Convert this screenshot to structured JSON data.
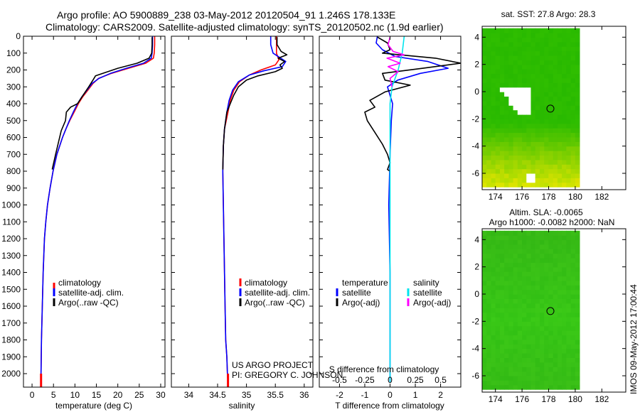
{
  "header": {
    "line1": "Argo profile: AO 5900889_238 03-May-2012 20120504_91 1.246S 178.133E",
    "line2": "Climatology: CARS2009. Satellite-adjusted climatology: synTS_20120502.nc (1.9d earlier)"
  },
  "colors": {
    "climatology": "#ff0000",
    "satellite": "#0000ff",
    "argo": "#000000",
    "salinity_satellite": "#00e5ee",
    "salinity_argo": "#ff00ff"
  },
  "credits": {
    "project": "US ARGO PROJECT",
    "pi": "PI: GREGORY C. JOHNSON",
    "stamp": "IMOS 09-May-2012 17:00:44"
  },
  "chart_data": [
    {
      "type": "line",
      "xlabel": "temperature (deg C)",
      "ylabel": "",
      "xlim": [
        -2,
        31
      ],
      "ylim": [
        2080,
        0
      ],
      "xticks": [
        "0",
        "5",
        "10",
        "15",
        "20",
        "25",
        "30"
      ],
      "xtick_values": [
        0,
        5,
        10,
        15,
        20,
        25,
        30
      ],
      "yticks": [
        "0",
        "100",
        "200",
        "300",
        "400",
        "500",
        "600",
        "700",
        "800",
        "900",
        "1000",
        "1100",
        "1200",
        "1300",
        "1400",
        "1500",
        "1600",
        "1700",
        "1800",
        "1900",
        "2000"
      ],
      "ytick_values": [
        0,
        100,
        200,
        300,
        400,
        500,
        600,
        700,
        800,
        900,
        1000,
        1100,
        1200,
        1300,
        1400,
        1500,
        1600,
        1700,
        1800,
        1900,
        2000
      ],
      "legend_placement": "bottom-left",
      "legend": [
        "climatology",
        "satellite-adj. clim.",
        "Argo(..raw -QC)"
      ],
      "series": [
        {
          "name": "climatology",
          "color": "#ff0000",
          "x": [
            28.6,
            28.6,
            28.5,
            28.3,
            26.5,
            22.5,
            18.5,
            15.5,
            14.2,
            13.0,
            11.8,
            10.8,
            9.8,
            8.8,
            7.9,
            7.1,
            5.8,
            4.9,
            4.2,
            3.6,
            3.2,
            2.9,
            2.6,
            2.4,
            2.2,
            2.1,
            2.1
          ],
          "y": [
            0,
            50,
            100,
            130,
            160,
            190,
            220,
            250,
            280,
            320,
            360,
            400,
            450,
            500,
            550,
            600,
            700,
            800,
            900,
            1000,
            1100,
            1200,
            1400,
            1600,
            1800,
            2000,
            2050
          ]
        },
        {
          "name": "satellite-adj. clim.",
          "color": "#0000ff",
          "x": [
            28.1,
            28.1,
            28.0,
            27.8,
            26.0,
            22.0,
            18.3,
            15.6,
            14.0,
            12.8,
            11.6,
            10.6,
            9.6,
            8.7,
            7.9,
            7.1,
            5.8,
            4.9,
            4.2,
            3.6,
            3.2,
            2.9,
            2.6,
            2.4,
            2.2,
            2.1,
            2.1
          ],
          "y": [
            0,
            50,
            100,
            130,
            160,
            190,
            220,
            250,
            280,
            320,
            360,
            400,
            450,
            500,
            550,
            600,
            700,
            800,
            900,
            1000,
            1100,
            1200,
            1400,
            1600,
            1800,
            2000,
            2050
          ]
        },
        {
          "name": "Argo(..raw -QC)",
          "color": "#000000",
          "x": [
            28.0,
            28.0,
            27.9,
            27.3,
            24.5,
            20.0,
            16.5,
            14.8,
            14.2,
            13.2,
            11.9,
            10.6,
            9.0,
            8.0,
            7.8,
            6.8,
            5.5,
            4.7
          ],
          "y": [
            5,
            50,
            100,
            130,
            160,
            190,
            220,
            235,
            260,
            300,
            350,
            400,
            420,
            450,
            500,
            560,
            700,
            790
          ]
        }
      ]
    },
    {
      "type": "line",
      "xlabel": "salinity",
      "ylabel": "",
      "xlim": [
        33.7,
        36.15
      ],
      "ylim": [
        2080,
        0
      ],
      "xticks": [
        "34",
        "34.5",
        "35",
        "35.5",
        "36"
      ],
      "xtick_values": [
        34,
        34.5,
        35,
        35.5,
        36
      ],
      "legend_placement": "bottom-left",
      "legend": [
        "climatology",
        "satellite-adj. clim.",
        "Argo(..raw -QC)"
      ],
      "series": [
        {
          "name": "climatology",
          "color": "#ff0000",
          "x": [
            35.52,
            35.52,
            35.52,
            35.56,
            35.5,
            35.25,
            35.05,
            34.88,
            34.78,
            34.72,
            34.68,
            34.62,
            34.6,
            34.59,
            34.6,
            34.61,
            34.62,
            34.63,
            34.64,
            34.66,
            34.67,
            34.68
          ],
          "y": [
            0,
            50,
            100,
            140,
            170,
            200,
            230,
            270,
            320,
            380,
            450,
            550,
            650,
            800,
            1000,
            1200,
            1400,
            1600,
            1800,
            1900,
            2000,
            2050
          ]
        },
        {
          "name": "satellite-adj. clim.",
          "color": "#0000ff",
          "x": [
            35.42,
            35.42,
            35.46,
            35.68,
            35.62,
            35.3,
            35.05,
            34.86,
            34.76,
            34.7,
            34.66,
            34.62,
            34.6,
            34.59,
            34.6,
            34.61,
            34.62,
            34.63,
            34.64,
            34.66,
            34.67,
            34.68
          ],
          "y": [
            0,
            50,
            100,
            150,
            180,
            205,
            230,
            270,
            320,
            380,
            450,
            550,
            650,
            800,
            1000,
            1200,
            1400,
            1600,
            1800,
            1900,
            2000,
            2050
          ]
        },
        {
          "name": "Argo(..raw -QC)",
          "color": "#000000",
          "x": [
            35.53,
            35.53,
            35.6,
            35.7,
            35.55,
            35.66,
            35.58,
            35.62,
            35.5,
            35.2,
            35.0,
            34.86,
            34.78,
            34.72,
            34.66,
            34.62,
            34.6,
            34.59
          ],
          "y": [
            5,
            50,
            90,
            110,
            130,
            150,
            170,
            190,
            210,
            235,
            260,
            300,
            350,
            400,
            450,
            550,
            650,
            790
          ]
        }
      ]
    },
    {
      "type": "line",
      "xlabel": "T difference from climatology",
      "x2label": "S difference from climatology",
      "ylabel": "",
      "xlim": [
        -2.8,
        2.8
      ],
      "ylim": [
        2080,
        0
      ],
      "xticks": [
        "-2",
        "-1",
        "0",
        "1",
        "2"
      ],
      "xtick_values": [
        -2,
        -1,
        0,
        1,
        2
      ],
      "x2lim": [
        -0.7,
        0.7
      ],
      "x2ticks": [
        "-0.5",
        "-0.25",
        "0",
        "0.25",
        "0.5"
      ],
      "x2tick_values": [
        -0.5,
        -0.25,
        0,
        0.25,
        0.5
      ],
      "legend_placement": "bottom",
      "legend": [
        "temperature",
        "satellite",
        "Argo(-adj)",
        "salinity",
        "satellite",
        "Argo(-adj)"
      ],
      "series": [
        {
          "name": "satellite",
          "group": "temperature",
          "axis": "T",
          "color": "#0000ff",
          "x": [
            -0.5,
            -0.55,
            -0.3,
            0.2,
            1.5,
            2.3,
            1.2,
            0.3,
            -0.1,
            0.1,
            0.05,
            0.0,
            -0.05,
            0.0,
            0.0,
            0.0
          ],
          "y": [
            0,
            40,
            80,
            120,
            150,
            190,
            220,
            260,
            300,
            400,
            500,
            700,
            1000,
            1400,
            1800,
            2050
          ]
        },
        {
          "name": "Argo(-adj)",
          "group": "temperature",
          "axis": "T",
          "color": "#000000",
          "x": [
            -0.5,
            -0.1,
            0.0,
            -0.3,
            1.8,
            2.8,
            1.3,
            -0.3,
            -0.2,
            0.8,
            -0.2,
            -0.8,
            -0.6,
            -1.0,
            -0.9,
            -0.6,
            -0.3,
            -0.1,
            0.0,
            -0.1,
            0.0
          ],
          "y": [
            5,
            40,
            80,
            100,
            130,
            160,
            190,
            220,
            260,
            290,
            330,
            380,
            420,
            450,
            500,
            570,
            640,
            700,
            750,
            790,
            800
          ]
        },
        {
          "name": "satellite",
          "group": "salinity",
          "axis": "S",
          "color": "#00e5ee",
          "x": [
            0.14,
            0.13,
            0.12,
            0.1,
            0.08,
            0.05,
            0.02,
            0.0,
            0.0,
            0.0,
            0.0,
            0.0,
            0.0
          ],
          "y": [
            0,
            50,
            100,
            150,
            200,
            250,
            300,
            400,
            600,
            900,
            1300,
            1700,
            2050
          ]
        },
        {
          "name": "Argo(-adj)",
          "group": "salinity",
          "axis": "S",
          "color": "#ff00ff",
          "x": [
            0.0,
            -0.02,
            0.03,
            0.14,
            -0.03,
            0.1,
            -0.02,
            0.08,
            0.0,
            0.02
          ],
          "y": [
            5,
            50,
            90,
            110,
            130,
            160,
            180,
            210,
            250,
            300
          ]
        }
      ]
    },
    {
      "type": "heatmap",
      "title": "sat. SST: 27.8 Argo: 28.3",
      "xlim": [
        173,
        183.8
      ],
      "ylim": [
        -7.2,
        4.8
      ],
      "xticks": [
        "174",
        "176",
        "178",
        "180",
        "182"
      ],
      "xtick_values": [
        174,
        176,
        178,
        180,
        182
      ],
      "yticks": [
        "4",
        "2",
        "0",
        "-2",
        "-4",
        "-6"
      ],
      "ytick_values": [
        4,
        2,
        0,
        -2,
        -4,
        -6
      ],
      "data_extent": {
        "lon": [
          173,
          180.1
        ],
        "lat": [
          -7,
          4.6
        ]
      },
      "marker": {
        "lon": 178.133,
        "lat": -1.246
      }
    },
    {
      "type": "heatmap",
      "title": "Altim. SLA: -0.0065",
      "subtitle": "Argo h1000: -0.0082 h2000: NaN",
      "xlim": [
        173,
        183.8
      ],
      "ylim": [
        -7.2,
        4.8
      ],
      "xticks": [
        "174",
        "176",
        "178",
        "180",
        "182"
      ],
      "xtick_values": [
        174,
        176,
        178,
        180,
        182
      ],
      "yticks": [
        "4",
        "2",
        "0",
        "-2",
        "-4",
        "-6"
      ],
      "ytick_values": [
        4,
        2,
        0,
        -2,
        -4,
        -6
      ],
      "data_extent": {
        "lon": [
          173,
          180.1
        ],
        "lat": [
          -7,
          4.6
        ]
      },
      "marker": {
        "lon": 178.133,
        "lat": -1.246
      }
    }
  ]
}
